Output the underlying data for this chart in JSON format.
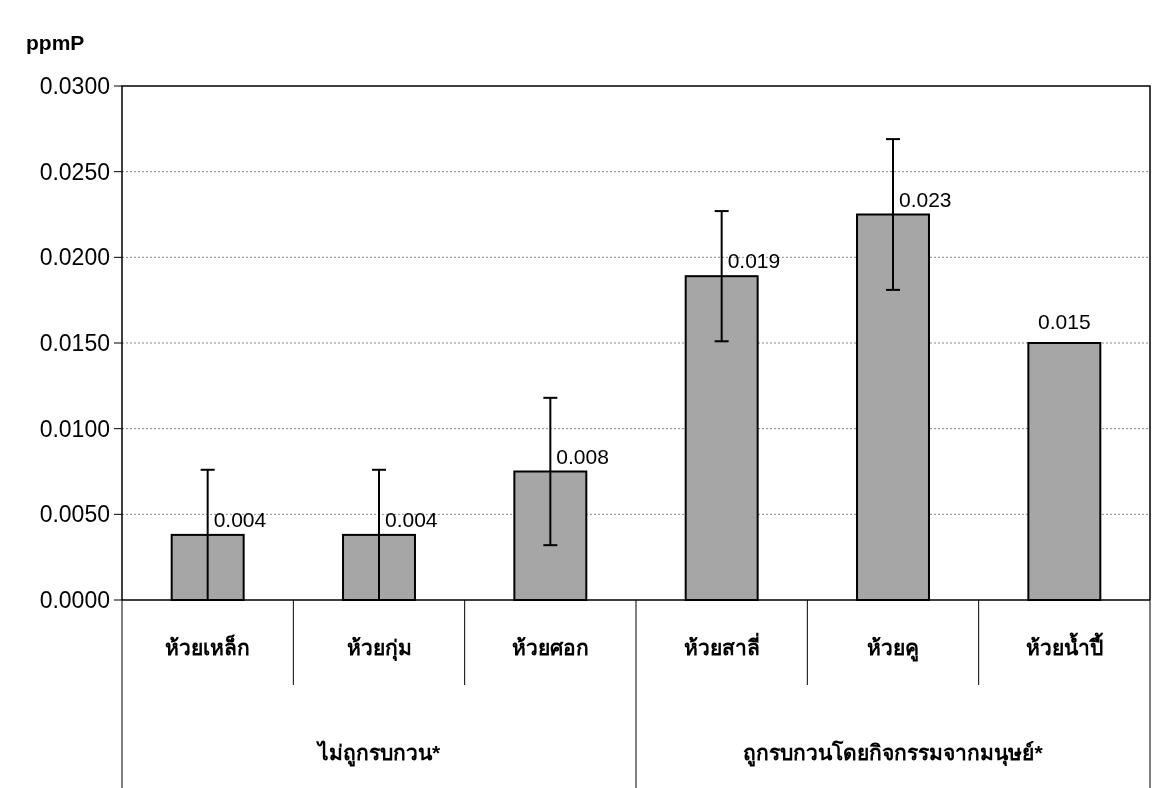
{
  "chart_data": {
    "type": "bar",
    "ylabel": "ppmP",
    "categories": [
      "ห้วยเหล็ก",
      "ห้วยกุ่ม",
      "ห้วยศอก",
      "ห้วยสาลี่",
      "ห้วยคู",
      "ห้วยน้ำปี้"
    ],
    "values": [
      0.0038,
      0.0038,
      0.0075,
      0.0189,
      0.0225,
      0.015
    ],
    "value_labels": [
      "0.004",
      "0.004",
      "0.008",
      "0.019",
      "0.023",
      "0.015"
    ],
    "errors": [
      0.0038,
      0.0038,
      0.0043,
      0.0038,
      0.0044,
      null
    ],
    "color": "#a6a6a6",
    "ylim": [
      0,
      0.03
    ],
    "yticks": [
      {
        "value": 0,
        "label": "0.0000"
      },
      {
        "value": 0.005,
        "label": "0.0050"
      },
      {
        "value": 0.01,
        "label": "0.0100"
      },
      {
        "value": 0.015,
        "label": "0.0150"
      },
      {
        "value": 0.02,
        "label": "0.0200"
      },
      {
        "value": 0.025,
        "label": "0.0250"
      },
      {
        "value": 0.03,
        "label": "0.0300"
      }
    ],
    "grid": "y",
    "annotations": [
      "ไม่ถูกรบกวน*",
      "ถูกรบกวนโดยกิจกรรมจากมนุษย์*"
    ]
  }
}
